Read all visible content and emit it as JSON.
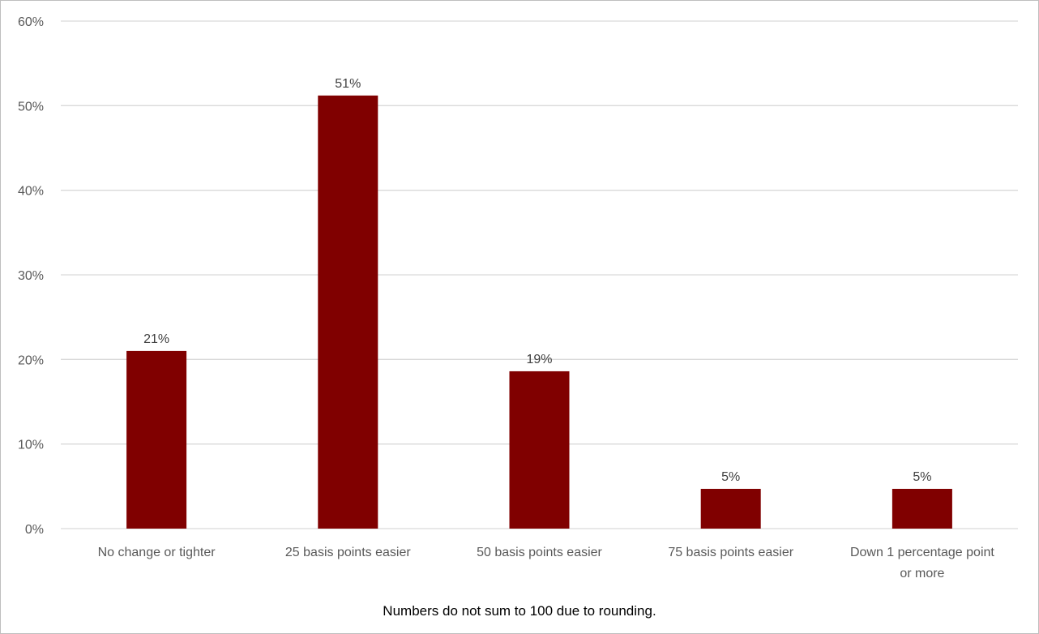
{
  "chart_data": {
    "type": "bar",
    "categories": [
      [
        "No change or tighter"
      ],
      [
        "25 basis points easier"
      ],
      [
        "50 basis points easier"
      ],
      [
        "75 basis points easier"
      ],
      [
        "Down 1 percentage point",
        "or more"
      ]
    ],
    "values": [
      21,
      51,
      19,
      5,
      5
    ],
    "data_labels": [
      "21%",
      "51%",
      "19%",
      "5%",
      "5%"
    ],
    "actual_heights": [
      21,
      51.2,
      18.6,
      4.7,
      4.7
    ],
    "title": "",
    "xlabel": "",
    "ylabel": "",
    "ylim": [
      0,
      60
    ],
    "yticks": [
      0,
      10,
      20,
      30,
      40,
      50,
      60
    ],
    "ytick_labels": [
      "0%",
      "10%",
      "20%",
      "30%",
      "40%",
      "50%",
      "60%"
    ],
    "grid": true,
    "legend": "none",
    "bar_color": "#800000",
    "grid_color": "#d9d9d9"
  },
  "footnote": "Numbers do not sum to 100 due to rounding."
}
